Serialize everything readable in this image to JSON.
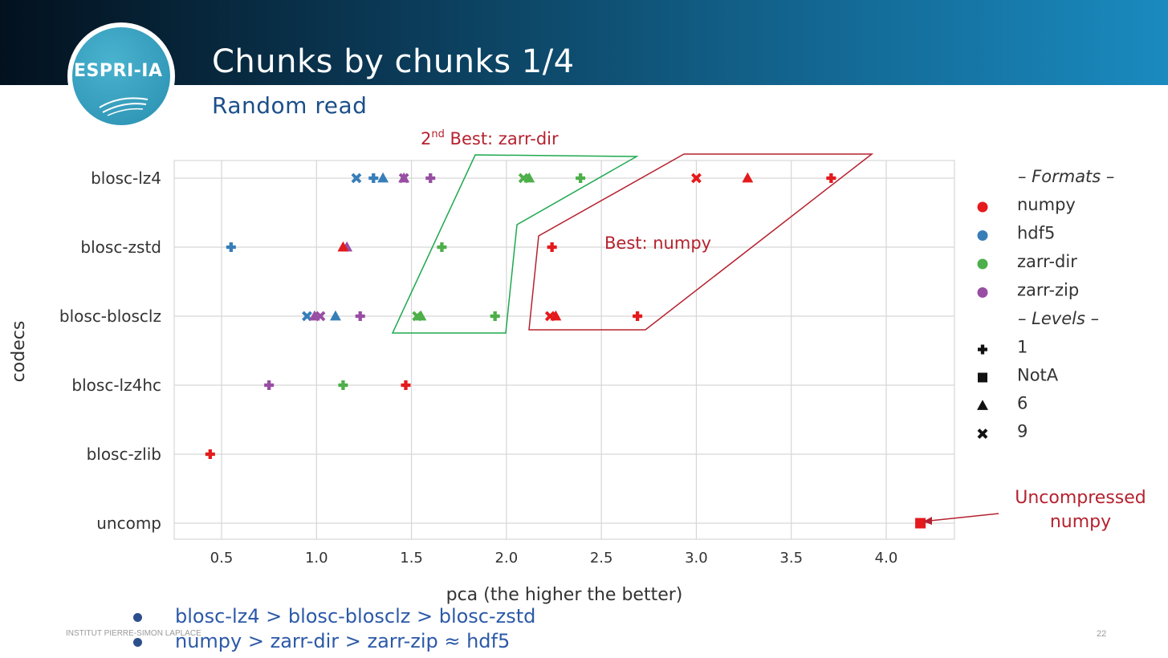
{
  "header": {
    "logo_text": "ESPRI-IA",
    "title": "Chunks by chunks 1/4",
    "subtitle": "Random read"
  },
  "annotations": {
    "second_best": {
      "sup": "nd",
      "num": "2",
      "text": " Best: zarr-dir",
      "color": "#b5222f"
    },
    "best": {
      "text": "Best: numpy",
      "color": "#b5222f"
    },
    "uncompressed_line1": "Uncompressed",
    "uncompressed_line2": "numpy"
  },
  "chart_data": {
    "type": "scatter",
    "xlabel": "pca (the higher the better)",
    "ylabel": "codecs",
    "xlim": [
      0.25,
      4.35
    ],
    "xticks": [
      "0.5",
      "1.0",
      "1.5",
      "2.0",
      "2.5",
      "3.0",
      "3.5",
      "4.0"
    ],
    "categories": [
      "blosc-lz4",
      "blosc-zstd",
      "blosc-blosclz",
      "blosc-lz4hc",
      "blosc-zlib",
      "uncomp"
    ],
    "grid": true,
    "legend": {
      "placement": "right",
      "formats_title": "– Formats –",
      "levels_title": "– Levels –",
      "formats": [
        {
          "name": "numpy",
          "color": "#e41a1c"
        },
        {
          "name": "hdf5",
          "color": "#377eb8"
        },
        {
          "name": "zarr-dir",
          "color": "#4daf4a"
        },
        {
          "name": "zarr-zip",
          "color": "#984ea3"
        }
      ],
      "levels": [
        {
          "name": "1",
          "marker": "plus"
        },
        {
          "name": "NotA",
          "marker": "square"
        },
        {
          "name": "6",
          "marker": "triangle"
        },
        {
          "name": "9",
          "marker": "x"
        }
      ]
    },
    "points": [
      {
        "codec": "blosc-lz4",
        "format": "hdf5",
        "level": "9",
        "x": 1.21
      },
      {
        "codec": "blosc-lz4",
        "format": "hdf5",
        "level": "1",
        "x": 1.3
      },
      {
        "codec": "blosc-lz4",
        "format": "hdf5",
        "level": "6",
        "x": 1.35
      },
      {
        "codec": "blosc-lz4",
        "format": "zarr-zip",
        "level": "9",
        "x": 1.46
      },
      {
        "codec": "blosc-lz4",
        "format": "zarr-zip",
        "level": "6",
        "x": 1.46
      },
      {
        "codec": "blosc-lz4",
        "format": "zarr-zip",
        "level": "1",
        "x": 1.6
      },
      {
        "codec": "blosc-lz4",
        "format": "zarr-dir",
        "level": "9",
        "x": 2.09
      },
      {
        "codec": "blosc-lz4",
        "format": "zarr-dir",
        "level": "6",
        "x": 2.12
      },
      {
        "codec": "blosc-lz4",
        "format": "zarr-dir",
        "level": "1",
        "x": 2.39
      },
      {
        "codec": "blosc-lz4",
        "format": "numpy",
        "level": "9",
        "x": 3.0
      },
      {
        "codec": "blosc-lz4",
        "format": "numpy",
        "level": "6",
        "x": 3.27
      },
      {
        "codec": "blosc-lz4",
        "format": "numpy",
        "level": "1",
        "x": 3.71
      },
      {
        "codec": "blosc-zstd",
        "format": "hdf5",
        "level": "1",
        "x": 0.55
      },
      {
        "codec": "blosc-zstd",
        "format": "zarr-zip",
        "level": "6",
        "x": 1.16
      },
      {
        "codec": "blosc-zstd",
        "format": "numpy",
        "level": "6",
        "x": 1.14
      },
      {
        "codec": "blosc-zstd",
        "format": "zarr-dir",
        "level": "1",
        "x": 1.66
      },
      {
        "codec": "blosc-zstd",
        "format": "numpy",
        "level": "1",
        "x": 2.24
      },
      {
        "codec": "blosc-blosclz",
        "format": "hdf5",
        "level": "9",
        "x": 0.95
      },
      {
        "codec": "blosc-blosclz",
        "format": "zarr-zip",
        "level": "6",
        "x": 0.99
      },
      {
        "codec": "blosc-blosclz",
        "format": "zarr-zip",
        "level": "9",
        "x": 1.02
      },
      {
        "codec": "blosc-blosclz",
        "format": "hdf5",
        "level": "6",
        "x": 1.1
      },
      {
        "codec": "blosc-blosclz",
        "format": "zarr-zip",
        "level": "1",
        "x": 1.23
      },
      {
        "codec": "blosc-blosclz",
        "format": "zarr-dir",
        "level": "9",
        "x": 1.53
      },
      {
        "codec": "blosc-blosclz",
        "format": "zarr-dir",
        "level": "6",
        "x": 1.55
      },
      {
        "codec": "blosc-blosclz",
        "format": "zarr-dir",
        "level": "1",
        "x": 1.94
      },
      {
        "codec": "blosc-blosclz",
        "format": "numpy",
        "level": "9",
        "x": 2.23
      },
      {
        "codec": "blosc-blosclz",
        "format": "numpy",
        "level": "6",
        "x": 2.26
      },
      {
        "codec": "blosc-blosclz",
        "format": "numpy",
        "level": "1",
        "x": 2.69
      },
      {
        "codec": "blosc-lz4hc",
        "format": "zarr-zip",
        "level": "1",
        "x": 0.75
      },
      {
        "codec": "blosc-lz4hc",
        "format": "zarr-dir",
        "level": "1",
        "x": 1.14
      },
      {
        "codec": "blosc-lz4hc",
        "format": "numpy",
        "level": "1",
        "x": 1.47
      },
      {
        "codec": "blosc-zlib",
        "format": "numpy",
        "level": "1",
        "x": 0.44
      },
      {
        "codec": "uncomp",
        "format": "numpy",
        "level": "NotA",
        "x": 4.18
      }
    ]
  },
  "bullets": [
    "blosc-lz4 > blosc-blosclz > blosc-zstd",
    "numpy >  zarr-dir > zarr-zip ≈ hdf5"
  ],
  "footer": {
    "institute": "INSTITUT PIERRE-SIMON LAPLACE",
    "page_number": "22"
  }
}
